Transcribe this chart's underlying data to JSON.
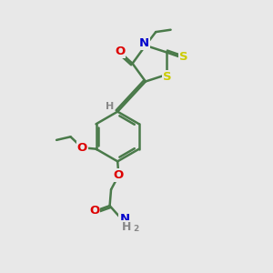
{
  "bg_color": "#e8e8e8",
  "bond_color": "#4a7a4a",
  "bond_width": 1.8,
  "atom_colors": {
    "O": "#dd0000",
    "N": "#0000cc",
    "S": "#cccc00",
    "H": "#888888"
  },
  "font_size": 9.5
}
